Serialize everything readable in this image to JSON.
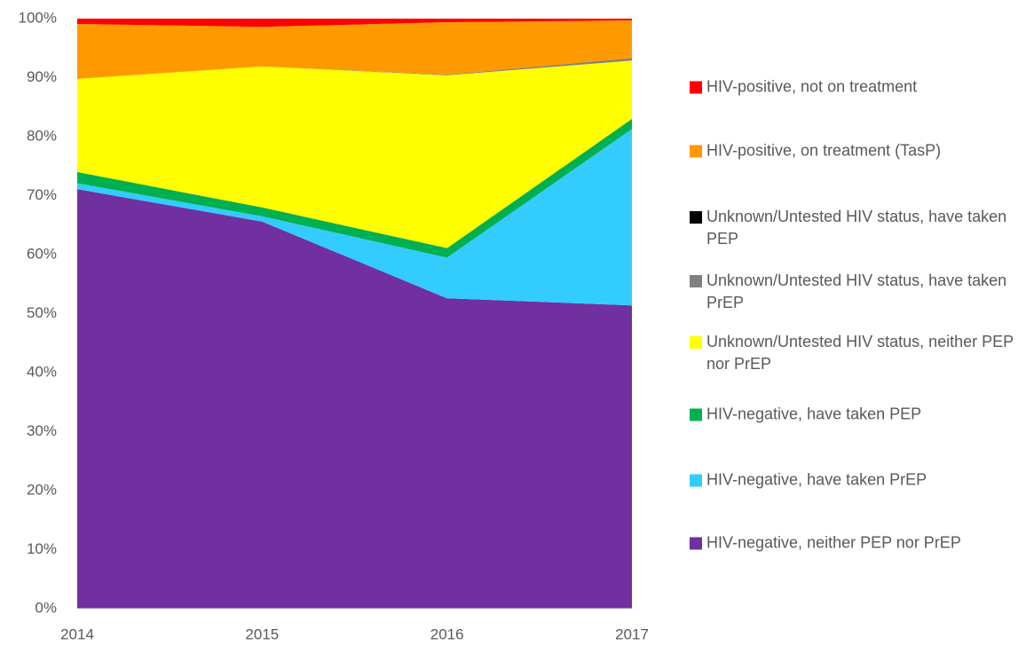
{
  "chart_data": {
    "type": "stacked_area",
    "x": [
      2014,
      2015,
      2016,
      2017
    ],
    "xlim": [
      2014,
      2017
    ],
    "xticks": [
      2014,
      2015,
      2016,
      2017
    ],
    "ylim": [
      0,
      100
    ],
    "yticks": [
      {
        "value": 0,
        "label": "0%"
      },
      {
        "value": 10,
        "label": "10%"
      },
      {
        "value": 20,
        "label": "20%"
      },
      {
        "value": 30,
        "label": "30%"
      },
      {
        "value": 40,
        "label": "40%"
      },
      {
        "value": 50,
        "label": "50%"
      },
      {
        "value": 60,
        "label": "60%"
      },
      {
        "value": 70,
        "label": "70%"
      },
      {
        "value": 80,
        "label": "80%"
      },
      {
        "value": 90,
        "label": "90%"
      },
      {
        "value": 100,
        "label": "100%"
      }
    ],
    "legend": "right",
    "series": [
      {
        "name": "HIV-negative, neither PEP nor PrEP",
        "color": "#7030a0",
        "values": [
          71.1,
          65.6,
          52.6,
          51.4
        ]
      },
      {
        "name": "HIV-negative, have taken PrEP",
        "color": "#33ccff",
        "values": [
          1.0,
          0.9,
          6.9,
          29.9
        ]
      },
      {
        "name": "HIV-negative, have taken PEP",
        "color": "#00b050",
        "values": [
          1.9,
          1.5,
          1.6,
          1.7
        ]
      },
      {
        "name": "Unknown/Untested HIV status, neither PEP nor PrEP",
        "color": "#ffff00",
        "values": [
          15.8,
          23.9,
          29.3,
          9.9
        ]
      },
      {
        "name": "Unknown/Untested HIV status, have taken PrEP",
        "color": "#808080",
        "values": [
          0,
          0,
          0.1,
          0.4
        ]
      },
      {
        "name": "Unknown/Untested HIV status, have taken PEP",
        "color": "#000000",
        "values": [
          0,
          0,
          0,
          0
        ]
      },
      {
        "name": "HIV-positive, on treatment (TasP)",
        "color": "#ff9900",
        "values": [
          9.3,
          6.7,
          8.9,
          6.4
        ]
      },
      {
        "name": "HIV-positive, not on treatment",
        "color": "#ff0000",
        "values": [
          0.9,
          1.4,
          0.6,
          0.3
        ]
      }
    ]
  }
}
